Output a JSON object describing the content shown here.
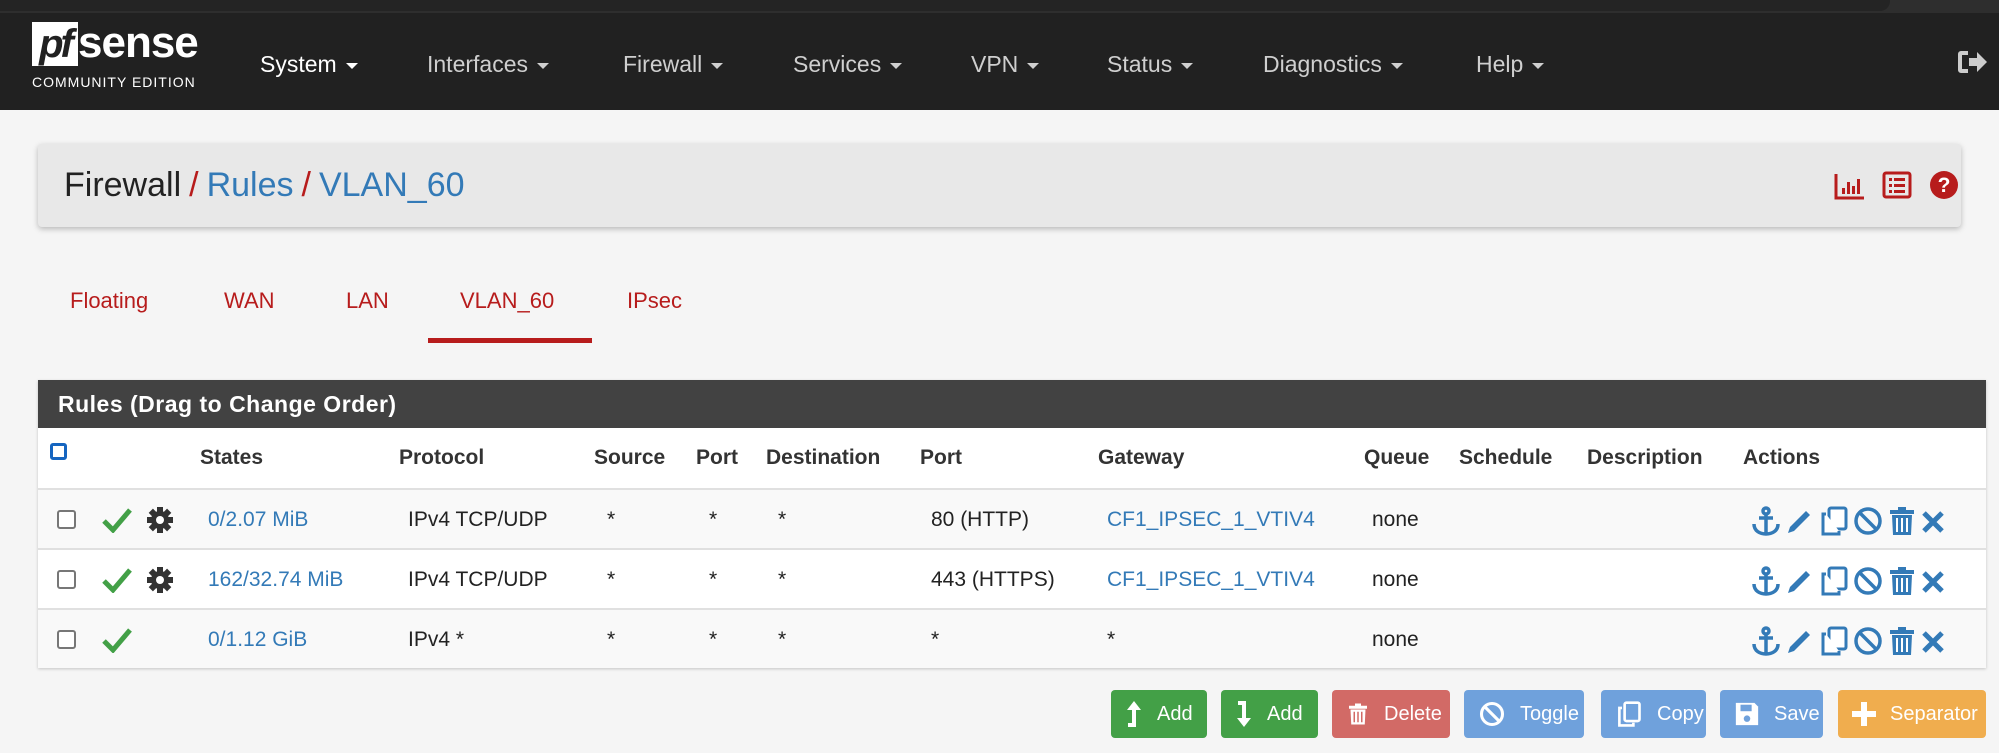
{
  "brand": {
    "logo_pf": "pf",
    "logo_sense": "sense",
    "edition": "COMMUNITY EDITION"
  },
  "nav": {
    "items": [
      {
        "label": "System"
      },
      {
        "label": "Interfaces"
      },
      {
        "label": "Firewall"
      },
      {
        "label": "Services"
      },
      {
        "label": "VPN"
      },
      {
        "label": "Status"
      },
      {
        "label": "Diagnostics"
      },
      {
        "label": "Help"
      }
    ],
    "logout_icon": "sign-out-icon"
  },
  "breadcrumb": {
    "items": [
      "Firewall",
      "Rules",
      "VLAN_60"
    ],
    "separator": "/",
    "icons": [
      "bar-chart-icon",
      "list-icon",
      "help-icon"
    ]
  },
  "tabs": {
    "items": [
      "Floating",
      "WAN",
      "LAN",
      "VLAN_60",
      "IPsec"
    ],
    "active": "VLAN_60"
  },
  "panel": {
    "title": "Rules (Drag to Change Order)",
    "columns": [
      "States",
      "Protocol",
      "Source",
      "Port",
      "Destination",
      "Port",
      "Gateway",
      "Queue",
      "Schedule",
      "Description",
      "Actions"
    ],
    "rows": [
      {
        "states": "0/2.07 MiB",
        "protocol": "IPv4 TCP/UDP",
        "source": "*",
        "source_port": "*",
        "destination": "*",
        "dest_port": "80 (HTTP)",
        "gateway": "CF1_IPSEC_1_VTIV4",
        "queue": "none",
        "schedule": "",
        "description": "",
        "has_advanced": true
      },
      {
        "states": "162/32.74 MiB",
        "protocol": "IPv4 TCP/UDP",
        "source": "*",
        "source_port": "*",
        "destination": "*",
        "dest_port": "443 (HTTPS)",
        "gateway": "CF1_IPSEC_1_VTIV4",
        "queue": "none",
        "schedule": "",
        "description": "",
        "has_advanced": true
      },
      {
        "states": "0/1.12 GiB",
        "protocol": "IPv4 *",
        "source": "*",
        "source_port": "*",
        "destination": "*",
        "dest_port": "*",
        "gateway": "*",
        "queue": "none",
        "schedule": "",
        "description": "",
        "has_advanced": false
      }
    ],
    "action_icons": [
      "anchor-icon",
      "pencil-icon",
      "copy-icon",
      "ban-icon",
      "trash-icon",
      "times-icon"
    ]
  },
  "buttons": {
    "add_top": "Add",
    "add_bottom": "Add",
    "delete": "Delete",
    "toggle": "Toggle",
    "copy": "Copy",
    "save": "Save",
    "separator": "Separator"
  },
  "colors": {
    "navbar": "#212121",
    "accent_red": "#b71c1c",
    "link_blue": "#337ab7",
    "success": "#43a047",
    "danger": "#d26a66",
    "info": "#6fa1dc",
    "warning": "#f0ad4e"
  }
}
